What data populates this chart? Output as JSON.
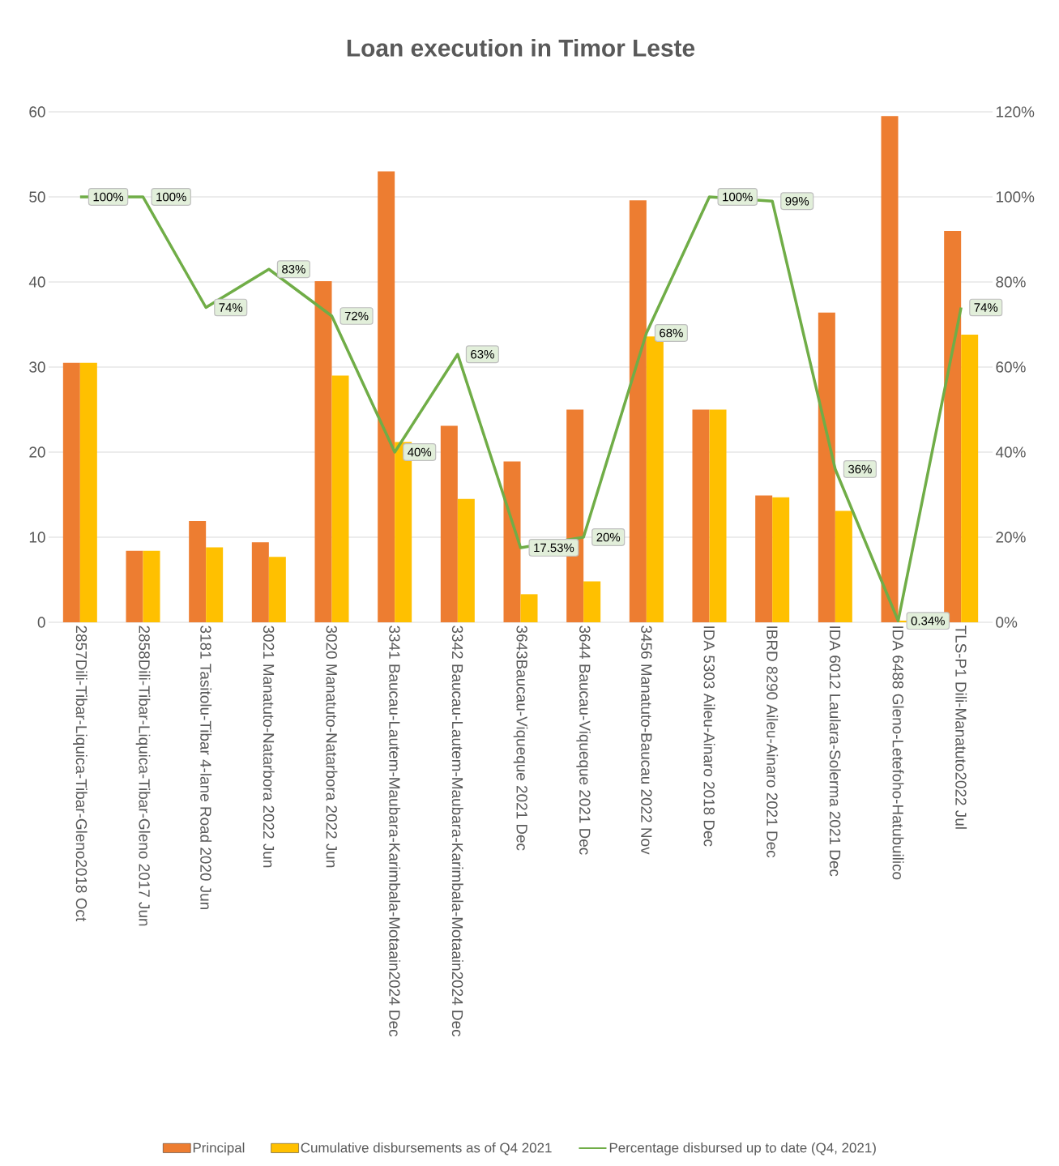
{
  "chart_data": {
    "type": "bar",
    "title": "Loan execution in Timor Leste",
    "categories": [
      "2857Dili-Tibar-Liquica-Tibar-Gleno2018 Oct",
      "2858Dili-Tibar-Liquica-Tibar-Gleno 2017 Jun",
      "3181 Tasitolu-Tibar 4-lane Road 2020 Jun",
      "3021 Manatuto-Natarbora 2022 Jun",
      "3020 Manatuto-Natarbora 2022 Jun",
      "3341 Baucau-Lautem-Maubara-Karimbala-Motaain2024 Dec",
      "3342 Baucau-Lautem-Maubara-Karimbala-Motaain2024 Dec",
      "3643Baucau-Viqueque 2021 Dec",
      "3644 Baucau-Viqueque 2021 Dec",
      "3456 Manatuto-Baucau 2022 Nov",
      "IDA 5303 Aileu-Ainaro 2018 Dec",
      "IBRD 8290 Aileu-Ainaro 2021 Dec",
      "IDA 6012 Laulara-Solerma 2021 Dec",
      "IDA 6488 Gleno-Letefoho-Hatubuilico",
      "TLS-P1 Dili-Manatuto2022 Jul"
    ],
    "series": [
      {
        "name": "Principal",
        "color": "#ed7d31",
        "values": [
          30.5,
          8.4,
          11.9,
          9.4,
          40.1,
          53.0,
          23.1,
          18.9,
          25.0,
          49.6,
          25.0,
          14.9,
          36.4,
          59.5,
          46.0
        ]
      },
      {
        "name": "Cumulative disbursements as of Q4 2021",
        "color": "#ffc000",
        "values": [
          30.5,
          8.4,
          8.8,
          7.7,
          29.0,
          21.2,
          14.5,
          3.3,
          4.8,
          33.6,
          25.0,
          14.7,
          13.1,
          0.2,
          33.8
        ]
      },
      {
        "name": "Percentage disbursed up to date (Q4, 2021)",
        "type": "line",
        "axis": "y2",
        "color": "#70ad47",
        "values": [
          100,
          100,
          74,
          83,
          72,
          40,
          63,
          17.53,
          20,
          68,
          100,
          99,
          36,
          0.34,
          74
        ],
        "value_labels": [
          "100%",
          "100%",
          "74%",
          "83%",
          "72%",
          "40%",
          "63%",
          "17.53%",
          "20%",
          "68%",
          "100%",
          "99%",
          "36%",
          "0.34%",
          "74%"
        ]
      }
    ],
    "ylim": [
      0,
      60
    ],
    "yticks": [
      0,
      10,
      20,
      30,
      40,
      50,
      60
    ],
    "y2lim": [
      0,
      120
    ],
    "y2ticks": [
      {
        "value": 0,
        "label": "0%"
      },
      {
        "value": 20,
        "label": "20%"
      },
      {
        "value": 40,
        "label": "40%"
      },
      {
        "value": 60,
        "label": "60%"
      },
      {
        "value": 80,
        "label": "80%"
      },
      {
        "value": 100,
        "label": "100%"
      },
      {
        "value": 120,
        "label": "120%"
      }
    ],
    "grid": "y",
    "legend": "bottom"
  }
}
